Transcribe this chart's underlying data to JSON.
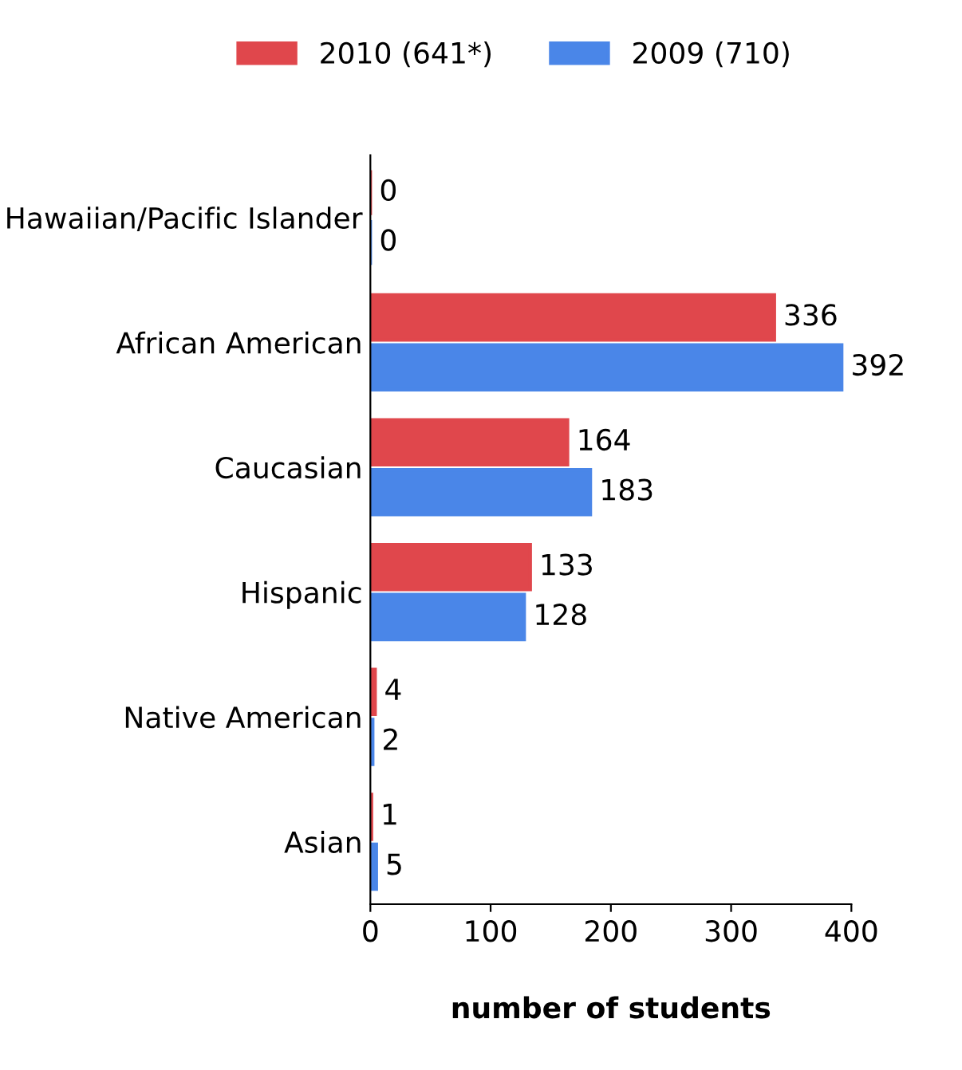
{
  "chart_data": {
    "type": "bar",
    "orientation": "horizontal",
    "xlabel": "number of students",
    "categories": [
      "Hawaiian/Pacific Islander",
      "African American",
      "Caucasian",
      "Hispanic",
      "Native American",
      "Asian"
    ],
    "series": [
      {
        "name": "2010 (641*)",
        "color": "#e0474c",
        "values": [
          0,
          336,
          164,
          133,
          4,
          1
        ]
      },
      {
        "name": "2009 (710)",
        "color": "#4a86e8",
        "values": [
          0,
          392,
          183,
          128,
          2,
          5
        ]
      }
    ],
    "xlim": [
      0,
      400
    ],
    "xticks": [
      0,
      100,
      200,
      300,
      400
    ],
    "grid": false,
    "legend": "top",
    "data_labels": true
  }
}
